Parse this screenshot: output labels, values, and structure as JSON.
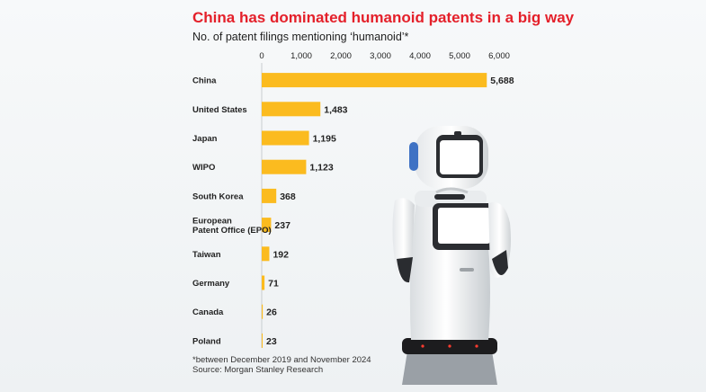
{
  "title": "China has dominated humanoid patents in a big way",
  "subtitle": "No. of patent filings mentioning ‘humanoid’*",
  "footnote": "*between December 2019 and November 2024",
  "source": "Source: Morgan Stanley Research",
  "colors": {
    "bar": "#fbbb1f",
    "title": "#e4202a"
  },
  "chart_data": {
    "type": "bar",
    "orientation": "horizontal",
    "categories": [
      [
        "China"
      ],
      [
        "United States"
      ],
      [
        "Japan"
      ],
      [
        "WIPO"
      ],
      [
        "South Korea"
      ],
      [
        "European",
        "Patent Office (EPO)"
      ],
      [
        "Taiwan"
      ],
      [
        "Germany"
      ],
      [
        "Canada"
      ],
      [
        "Poland"
      ]
    ],
    "values": [
      5688,
      1483,
      1195,
      1123,
      368,
      237,
      192,
      71,
      26,
      23
    ],
    "value_labels": [
      "5,688",
      "1,483",
      "1,195",
      "1,123",
      "368",
      "237",
      "192",
      "71",
      "26",
      "23"
    ],
    "ticks": [
      0,
      1000,
      2000,
      3000,
      4000,
      5000,
      6000
    ],
    "tick_labels": [
      "0",
      "1,000",
      "2,000",
      "3,000",
      "4,000",
      "5,000",
      "6,000"
    ],
    "xlim": [
      0,
      6000
    ],
    "axis_position": "top",
    "grid": false
  }
}
